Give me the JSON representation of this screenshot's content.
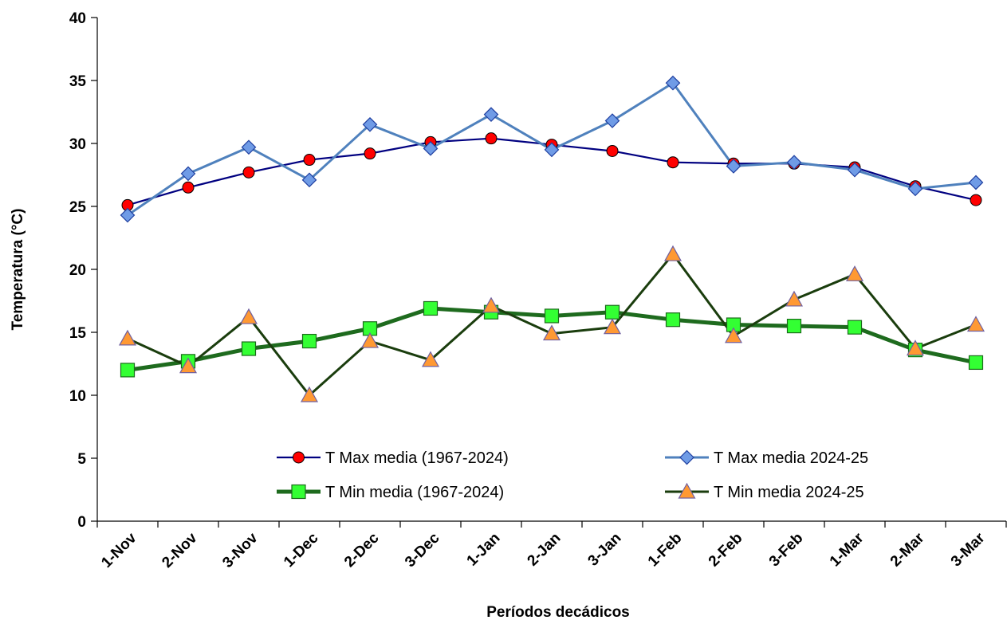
{
  "chart_data": {
    "type": "line",
    "title": "",
    "xlabel": "Períodos decádicos",
    "ylabel": "Temperatura (°C)",
    "ylim": [
      0,
      40
    ],
    "yticks": [
      "0",
      "5",
      "10",
      "15",
      "20",
      "25",
      "30",
      "35",
      "40"
    ],
    "grid": false,
    "legend_position": "bottom-center inside plot",
    "categories": [
      "1-Nov",
      "2-Nov",
      "3-Nov",
      "1-Dec",
      "2-Dec",
      "3-Dec",
      "1-Jan",
      "2-Jan",
      "3-Jan",
      "1-Feb",
      "2-Feb",
      "3-Feb",
      "1-Mar",
      "2-Mar",
      "3-Mar"
    ],
    "series": [
      {
        "name": "T Max media (1967-2024)",
        "values": [
          25.1,
          26.5,
          27.7,
          28.7,
          29.2,
          30.1,
          30.4,
          29.9,
          29.4,
          28.5,
          28.4,
          28.4,
          28.1,
          26.6,
          25.5
        ],
        "line_color": "#000080",
        "marker": "circle",
        "marker_color": "#ff0000"
      },
      {
        "name": "T Max media 2024-25",
        "values": [
          24.3,
          27.6,
          29.7,
          27.1,
          31.5,
          29.6,
          32.3,
          29.5,
          31.8,
          34.8,
          28.2,
          28.5,
          27.9,
          26.4,
          26.9
        ],
        "line_color": "#4f81bd",
        "marker": "diamond",
        "marker_color": "#6f9be6"
      },
      {
        "name": "T Min media (1967-2024)",
        "values": [
          12.0,
          12.7,
          13.7,
          14.3,
          15.3,
          16.9,
          16.6,
          16.3,
          16.6,
          16.0,
          15.6,
          15.5,
          15.4,
          13.6,
          12.6
        ],
        "line_color": "#1e6b1e",
        "marker": "square",
        "marker_color": "#33ff33"
      },
      {
        "name": "T Min media 2024-25",
        "values": [
          14.5,
          12.3,
          16.2,
          10.0,
          14.3,
          12.8,
          17.1,
          14.9,
          15.4,
          21.2,
          14.7,
          17.6,
          19.6,
          13.7,
          15.6
        ],
        "line_color": "#1a3d0d",
        "marker": "triangle",
        "marker_color": "#ff9933"
      }
    ]
  }
}
